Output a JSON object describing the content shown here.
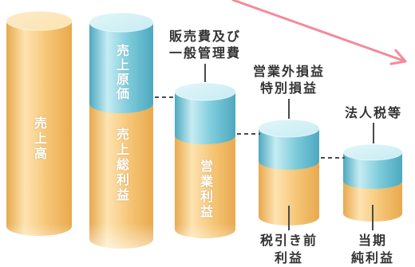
{
  "bars": {
    "sales": {
      "label": "売上高"
    },
    "cost_of_sales": {
      "label": "売上原価"
    },
    "gross_profit": {
      "label": "売上総利益"
    },
    "sga": {
      "label_line1": "販売費及び",
      "label_line2": "一般管理費"
    },
    "operating_profit": {
      "label": "営業利益"
    },
    "non_operating_extraordinary": {
      "label_line1": "営業外損益",
      "label_line2": "特別損益"
    },
    "pretax_profit": {
      "label_line1": "税引き前",
      "label_line2": "利益"
    },
    "corporate_tax": {
      "label": "法人税等"
    },
    "net_profit": {
      "label_line1": "当期",
      "label_line2": "純利益"
    }
  },
  "colors": {
    "profit_dark": "#e8a94e",
    "profit_base": "#f6c677",
    "profit_light": "#fde3b0",
    "profit_top": "#fcebc9",
    "cost_dark": "#4ea8bf",
    "cost_base": "#7ccbdb",
    "cost_light": "#c6ecf3",
    "cost_top": "#e2f6f9",
    "arrow": "#f38a9c",
    "label_text": "#333333",
    "inner_text": "#ffffff",
    "connector": "#4a4a4a"
  }
}
